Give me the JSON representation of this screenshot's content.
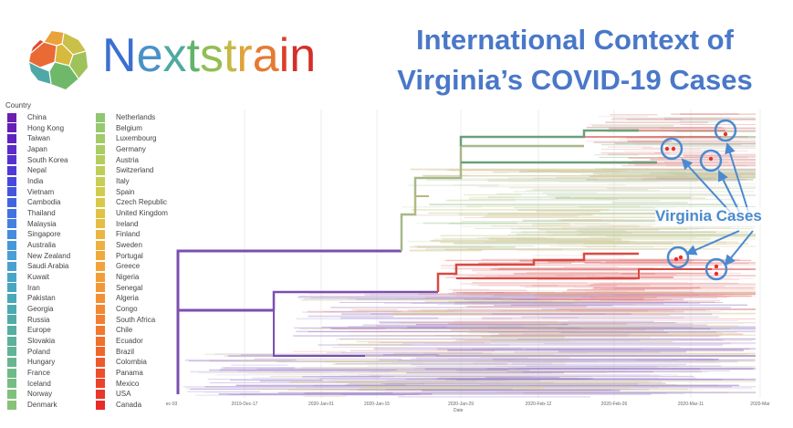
{
  "logo": {
    "text": "Nextstrain",
    "letter_colors": [
      "#3c6fd0",
      "#4a92c8",
      "#4eaaa0",
      "#62b46a",
      "#93bd55",
      "#c5b945",
      "#e0a33a",
      "#e57a32",
      "#dd3d2b",
      "#d42f2a"
    ]
  },
  "title": {
    "line1": "International Context of",
    "line2": "Virginia’s COVID-19 Cases"
  },
  "legend": {
    "title": "Country",
    "columns": [
      [
        {
          "label": "China",
          "color": "#6a1fb0"
        },
        {
          "label": "Hong Kong",
          "color": "#6420b8"
        },
        {
          "label": "Taiwan",
          "color": "#5e24bf"
        },
        {
          "label": "Japan",
          "color": "#5a2cc8"
        },
        {
          "label": "South Korea",
          "color": "#5532cf"
        },
        {
          "label": "Nepal",
          "color": "#4f3ad6"
        },
        {
          "label": "India",
          "color": "#4948dc"
        },
        {
          "label": "Vietnam",
          "color": "#4456de"
        },
        {
          "label": "Cambodia",
          "color": "#4164e0"
        },
        {
          "label": "Thailand",
          "color": "#4172e0"
        },
        {
          "label": "Malaysia",
          "color": "#4380e0"
        },
        {
          "label": "Singapore",
          "color": "#458cde"
        },
        {
          "label": "Australia",
          "color": "#4896da"
        },
        {
          "label": "New Zealand",
          "color": "#4a9ed6"
        },
        {
          "label": "Saudi Arabia",
          "color": "#4aa0d0"
        },
        {
          "label": "Kuwait",
          "color": "#4aa4c8"
        },
        {
          "label": "Iran",
          "color": "#4aa6c0"
        },
        {
          "label": "Pakistan",
          "color": "#4aa8b8"
        },
        {
          "label": "Georgia",
          "color": "#4caab0"
        },
        {
          "label": "Russia",
          "color": "#50aca8"
        },
        {
          "label": "Europe",
          "color": "#55aea2"
        },
        {
          "label": "Slovakia",
          "color": "#5cb09c"
        },
        {
          "label": "Poland",
          "color": "#62b496"
        },
        {
          "label": "Hungary",
          "color": "#68b690"
        },
        {
          "label": "France",
          "color": "#70ba8a"
        },
        {
          "label": "Iceland",
          "color": "#78bc84"
        },
        {
          "label": "Norway",
          "color": "#80c07e"
        },
        {
          "label": "Denmark",
          "color": "#88c278"
        }
      ],
      [
        {
          "label": "Netherlands",
          "color": "#90c674"
        },
        {
          "label": "Belgium",
          "color": "#98c870"
        },
        {
          "label": "Luxembourg",
          "color": "#a2ca6a"
        },
        {
          "label": "Germany",
          "color": "#aacc64"
        },
        {
          "label": "Austria",
          "color": "#b4ce5e"
        },
        {
          "label": "Switzerland",
          "color": "#bece58"
        },
        {
          "label": "Italy",
          "color": "#c8ce52"
        },
        {
          "label": "Spain",
          "color": "#d2cc4c"
        },
        {
          "label": "Czech Republic",
          "color": "#dac848"
        },
        {
          "label": "United Kingdom",
          "color": "#e0c244"
        },
        {
          "label": "Ireland",
          "color": "#e6bc42"
        },
        {
          "label": "Finland",
          "color": "#eab640"
        },
        {
          "label": "Sweden",
          "color": "#eeb03e"
        },
        {
          "label": "Portugal",
          "color": "#f0aa3c"
        },
        {
          "label": "Greece",
          "color": "#f2a43a"
        },
        {
          "label": "Nigeria",
          "color": "#f29e38"
        },
        {
          "label": "Senegal",
          "color": "#f29836"
        },
        {
          "label": "Algeria",
          "color": "#f29034"
        },
        {
          "label": "Congo",
          "color": "#f28832"
        },
        {
          "label": "South Africa",
          "color": "#f28030"
        },
        {
          "label": "Chile",
          "color": "#f2782e"
        },
        {
          "label": "Ecuador",
          "color": "#f0702c"
        },
        {
          "label": "Brazil",
          "color": "#f0662a"
        },
        {
          "label": "Colombia",
          "color": "#ee5a2a"
        },
        {
          "label": "Panama",
          "color": "#ee4e2a"
        },
        {
          "label": "Mexico",
          "color": "#ec422a"
        },
        {
          "label": "USA",
          "color": "#ea3629"
        },
        {
          "label": "Canada",
          "color": "#e82a28"
        }
      ]
    ]
  },
  "axis": {
    "ticks": [
      "ec-03",
      "2019-Dec-17",
      "2020-Jan-01",
      "2020-Jan-15",
      "2020-Jan-29",
      "2020-Feb-12",
      "2020-Feb-26",
      "2020-Mar-11",
      "2020-Mar"
    ],
    "label": "Date"
  },
  "annotation": {
    "label": "Virginia Cases",
    "color": "#4a8ad0",
    "highlight_count": 6
  },
  "colors": {
    "title": "#4a78c8",
    "root_clade": "#7a4fb0",
    "red_clade": "#d84a44",
    "green_clade": "#6aa07a",
    "virginia_dot": "#e8302a"
  }
}
